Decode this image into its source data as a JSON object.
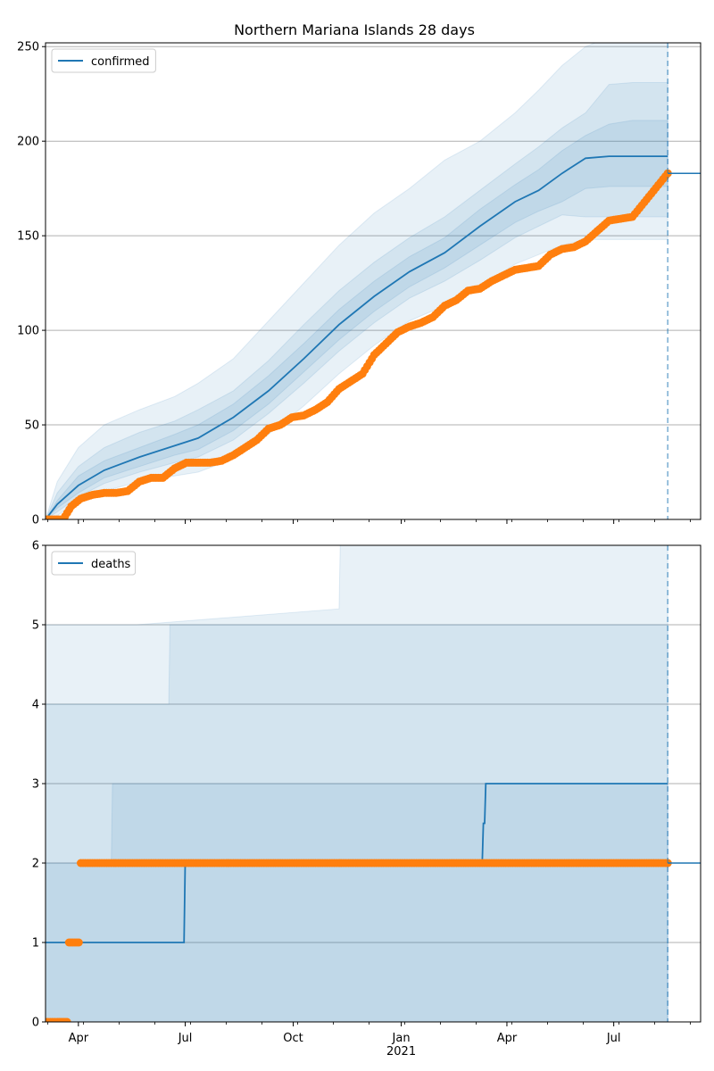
{
  "title": "Northern Mariana Islands 28 days",
  "colors": {
    "model": "#1f77b4",
    "observed": "#ff7f0e",
    "grid": "#b0b0b0",
    "band": "#1f77b4"
  },
  "x_axis": {
    "months": [
      {
        "label": "Apr",
        "day": 18
      },
      {
        "label": "Jul",
        "day": 109
      },
      {
        "label": "Oct",
        "day": 201
      },
      {
        "label": "Jan",
        "day": 293
      },
      {
        "label": "Apr",
        "day": 383
      },
      {
        "label": "Jul",
        "day": 474
      }
    ],
    "year_label": "2021",
    "year_day": 293,
    "range_days": [
      -10,
      548
    ],
    "forecast_day": 520
  },
  "chart_data": [
    {
      "type": "line",
      "legend": "confirmed",
      "legend_position": "top-left",
      "grid": true,
      "ylim": [
        0,
        252
      ],
      "yticks": [
        0,
        50,
        100,
        150,
        200,
        250
      ],
      "model_line": {
        "x": [
          -10,
          0,
          18,
          40,
          70,
          100,
          120,
          150,
          180,
          210,
          240,
          270,
          300,
          330,
          360,
          390,
          410,
          430,
          450,
          470,
          490,
          520
        ],
        "y": [
          0,
          8,
          18,
          26,
          33,
          39,
          43,
          54,
          68,
          85,
          103,
          118,
          131,
          141,
          155,
          168,
          174,
          183,
          191,
          192,
          192,
          192
        ]
      },
      "bands": [
        {
          "x": [
            -10,
            0,
            18,
            40,
            70,
            100,
            120,
            150,
            180,
            210,
            240,
            270,
            300,
            330,
            360,
            390,
            410,
            430,
            450,
            470,
            490,
            520
          ],
          "lower": [
            0,
            2,
            10,
            15,
            20,
            23,
            25,
            32,
            45,
            60,
            77,
            92,
            105,
            113,
            123,
            135,
            140,
            145,
            148,
            148,
            148,
            148
          ],
          "upper": [
            0,
            20,
            38,
            50,
            58,
            65,
            72,
            85,
            105,
            125,
            145,
            162,
            175,
            190,
            200,
            215,
            227,
            240,
            250,
            255,
            255,
            255
          ]
        },
        {
          "x": [
            -10,
            0,
            18,
            40,
            70,
            100,
            120,
            150,
            180,
            210,
            240,
            270,
            300,
            330,
            360,
            390,
            410,
            430,
            450,
            470,
            490,
            520
          ],
          "lower": [
            0,
            4,
            12,
            19,
            25,
            30,
            33,
            42,
            56,
            72,
            89,
            104,
            117,
            126,
            137,
            149,
            155,
            161,
            160,
            160,
            160,
            160
          ],
          "upper": [
            0,
            14,
            28,
            38,
            46,
            52,
            58,
            68,
            84,
            103,
            121,
            136,
            149,
            160,
            174,
            188,
            197,
            207,
            215,
            230,
            231,
            231
          ]
        },
        {
          "x": [
            -10,
            0,
            18,
            40,
            70,
            100,
            120,
            150,
            180,
            210,
            240,
            270,
            300,
            330,
            360,
            390,
            410,
            430,
            450,
            470,
            490,
            520
          ],
          "lower": [
            0,
            6,
            14,
            22,
            28,
            34,
            37,
            47,
            61,
            78,
            95,
            110,
            123,
            133,
            145,
            157,
            163,
            168,
            175,
            176,
            176,
            176
          ],
          "upper": [
            0,
            10,
            23,
            31,
            38,
            45,
            50,
            61,
            76,
            93,
            111,
            126,
            139,
            149,
            164,
            177,
            185,
            195,
            203,
            209,
            211,
            211
          ]
        }
      ],
      "observed": {
        "x": [
          -10,
          5,
          12,
          20,
          30,
          40,
          50,
          60,
          70,
          80,
          90,
          100,
          110,
          120,
          130,
          140,
          150,
          160,
          170,
          180,
          190,
          200,
          210,
          220,
          230,
          240,
          250,
          260,
          270,
          280,
          290,
          300,
          310,
          320,
          330,
          340,
          350,
          360,
          370,
          380,
          390,
          400,
          410,
          420,
          430,
          440,
          450,
          470,
          490,
          520
        ],
        "y": [
          0,
          0,
          7,
          11,
          13,
          14,
          14,
          15,
          20,
          22,
          22,
          27,
          30,
          30,
          30,
          31,
          34,
          38,
          42,
          48,
          50,
          54,
          55,
          58,
          62,
          69,
          73,
          77,
          87,
          93,
          99,
          102,
          104,
          107,
          113,
          116,
          121,
          122,
          126,
          129,
          132,
          133,
          134,
          140,
          143,
          144,
          147,
          158,
          160,
          183
        ]
      },
      "forecast_value": 183
    },
    {
      "type": "line",
      "legend": "deaths",
      "legend_position": "top-left",
      "grid": true,
      "ylim": [
        0,
        6
      ],
      "yticks": [
        0,
        1,
        2,
        3,
        4,
        5,
        6
      ],
      "model_line": {
        "x": [
          -10,
          108,
          109,
          362,
          363,
          364,
          365,
          520
        ],
        "y": [
          1,
          1,
          2,
          2,
          2.5,
          2.5,
          3,
          3
        ]
      },
      "bands": [
        {
          "x": [
            -10,
            67,
            68,
            240,
            241,
            520
          ],
          "lower": [
            0,
            0,
            0,
            0,
            0,
            0
          ],
          "upper": [
            5,
            5,
            5,
            5.2,
            6,
            6
          ]
        },
        {
          "x": [
            -10,
            95,
            96,
            204,
            205,
            520
          ],
          "lower": [
            0,
            0,
            0,
            0,
            0,
            0
          ],
          "upper": [
            4,
            4,
            5,
            5,
            5,
            5
          ]
        },
        {
          "x": [
            -10,
            46,
            47,
            520
          ],
          "lower": [
            0,
            0,
            0,
            0
          ],
          "upper": [
            2,
            2,
            3,
            3
          ]
        }
      ],
      "observed": {
        "x": [
          -10,
          0,
          5,
          10,
          15,
          20,
          30,
          40,
          60,
          80,
          100,
          120,
          140,
          160,
          180,
          200,
          220,
          240,
          260,
          280,
          300,
          320,
          340,
          360,
          380,
          400,
          420,
          440,
          460,
          480,
          500,
          520
        ],
        "y": [
          0,
          0,
          0,
          1,
          1,
          2,
          2,
          2,
          2,
          2,
          2,
          2,
          2,
          2,
          2,
          2,
          2,
          2,
          2,
          2,
          2,
          2,
          2,
          2,
          2,
          2,
          2,
          2,
          2,
          2,
          2,
          2
        ]
      },
      "forecast_value": 2
    }
  ]
}
